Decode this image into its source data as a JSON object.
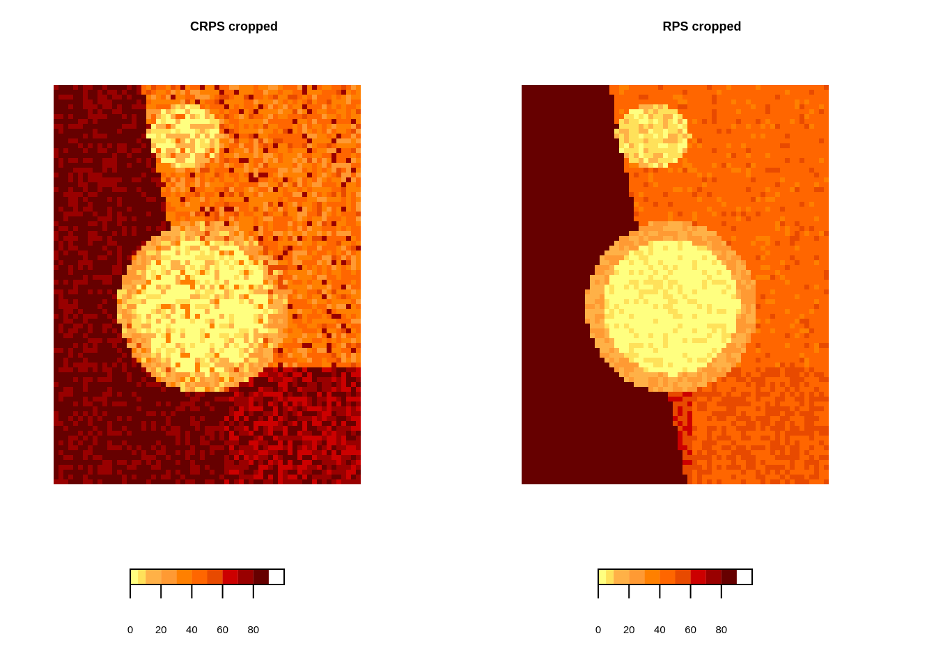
{
  "legend_colors": [
    "#FFFF80",
    "#FFE15A",
    "#FFB147",
    "#FF9A33",
    "#FF8000",
    "#FF6600",
    "#E84A00",
    "#CC0000",
    "#990000",
    "#660000"
  ],
  "chart_data": [
    {
      "type": "heatmap",
      "title": "CRPS cropped",
      "xlabel": "",
      "ylabel": "",
      "legend": {
        "position": "bottom",
        "range": [
          0,
          100
        ],
        "breaks": [
          0,
          5,
          10,
          20,
          30,
          40,
          50,
          60,
          70,
          80,
          90,
          95,
          100
        ],
        "ticks": [
          0,
          20,
          40,
          60,
          80
        ],
        "tick_labels": [
          "0",
          "20",
          "40",
          "60",
          "80"
        ]
      },
      "description_values": {
        "center_region_value": 2,
        "north_east_value": 40,
        "west_value": 85,
        "south_value": 75
      }
    },
    {
      "type": "heatmap",
      "title": "RPS cropped",
      "xlabel": "",
      "ylabel": "",
      "legend": {
        "position": "bottom",
        "range": [
          0,
          100
        ],
        "breaks": [
          0,
          5,
          10,
          20,
          30,
          40,
          50,
          60,
          70,
          80,
          90,
          95,
          100
        ],
        "ticks": [
          0,
          20,
          40,
          60,
          80
        ],
        "tick_labels": [
          "0",
          "20",
          "40",
          "60",
          "80"
        ]
      },
      "description_values": {
        "center_region_value": 2,
        "north_east_value": 45,
        "west_value": 90,
        "south_value": 50
      }
    }
  ]
}
